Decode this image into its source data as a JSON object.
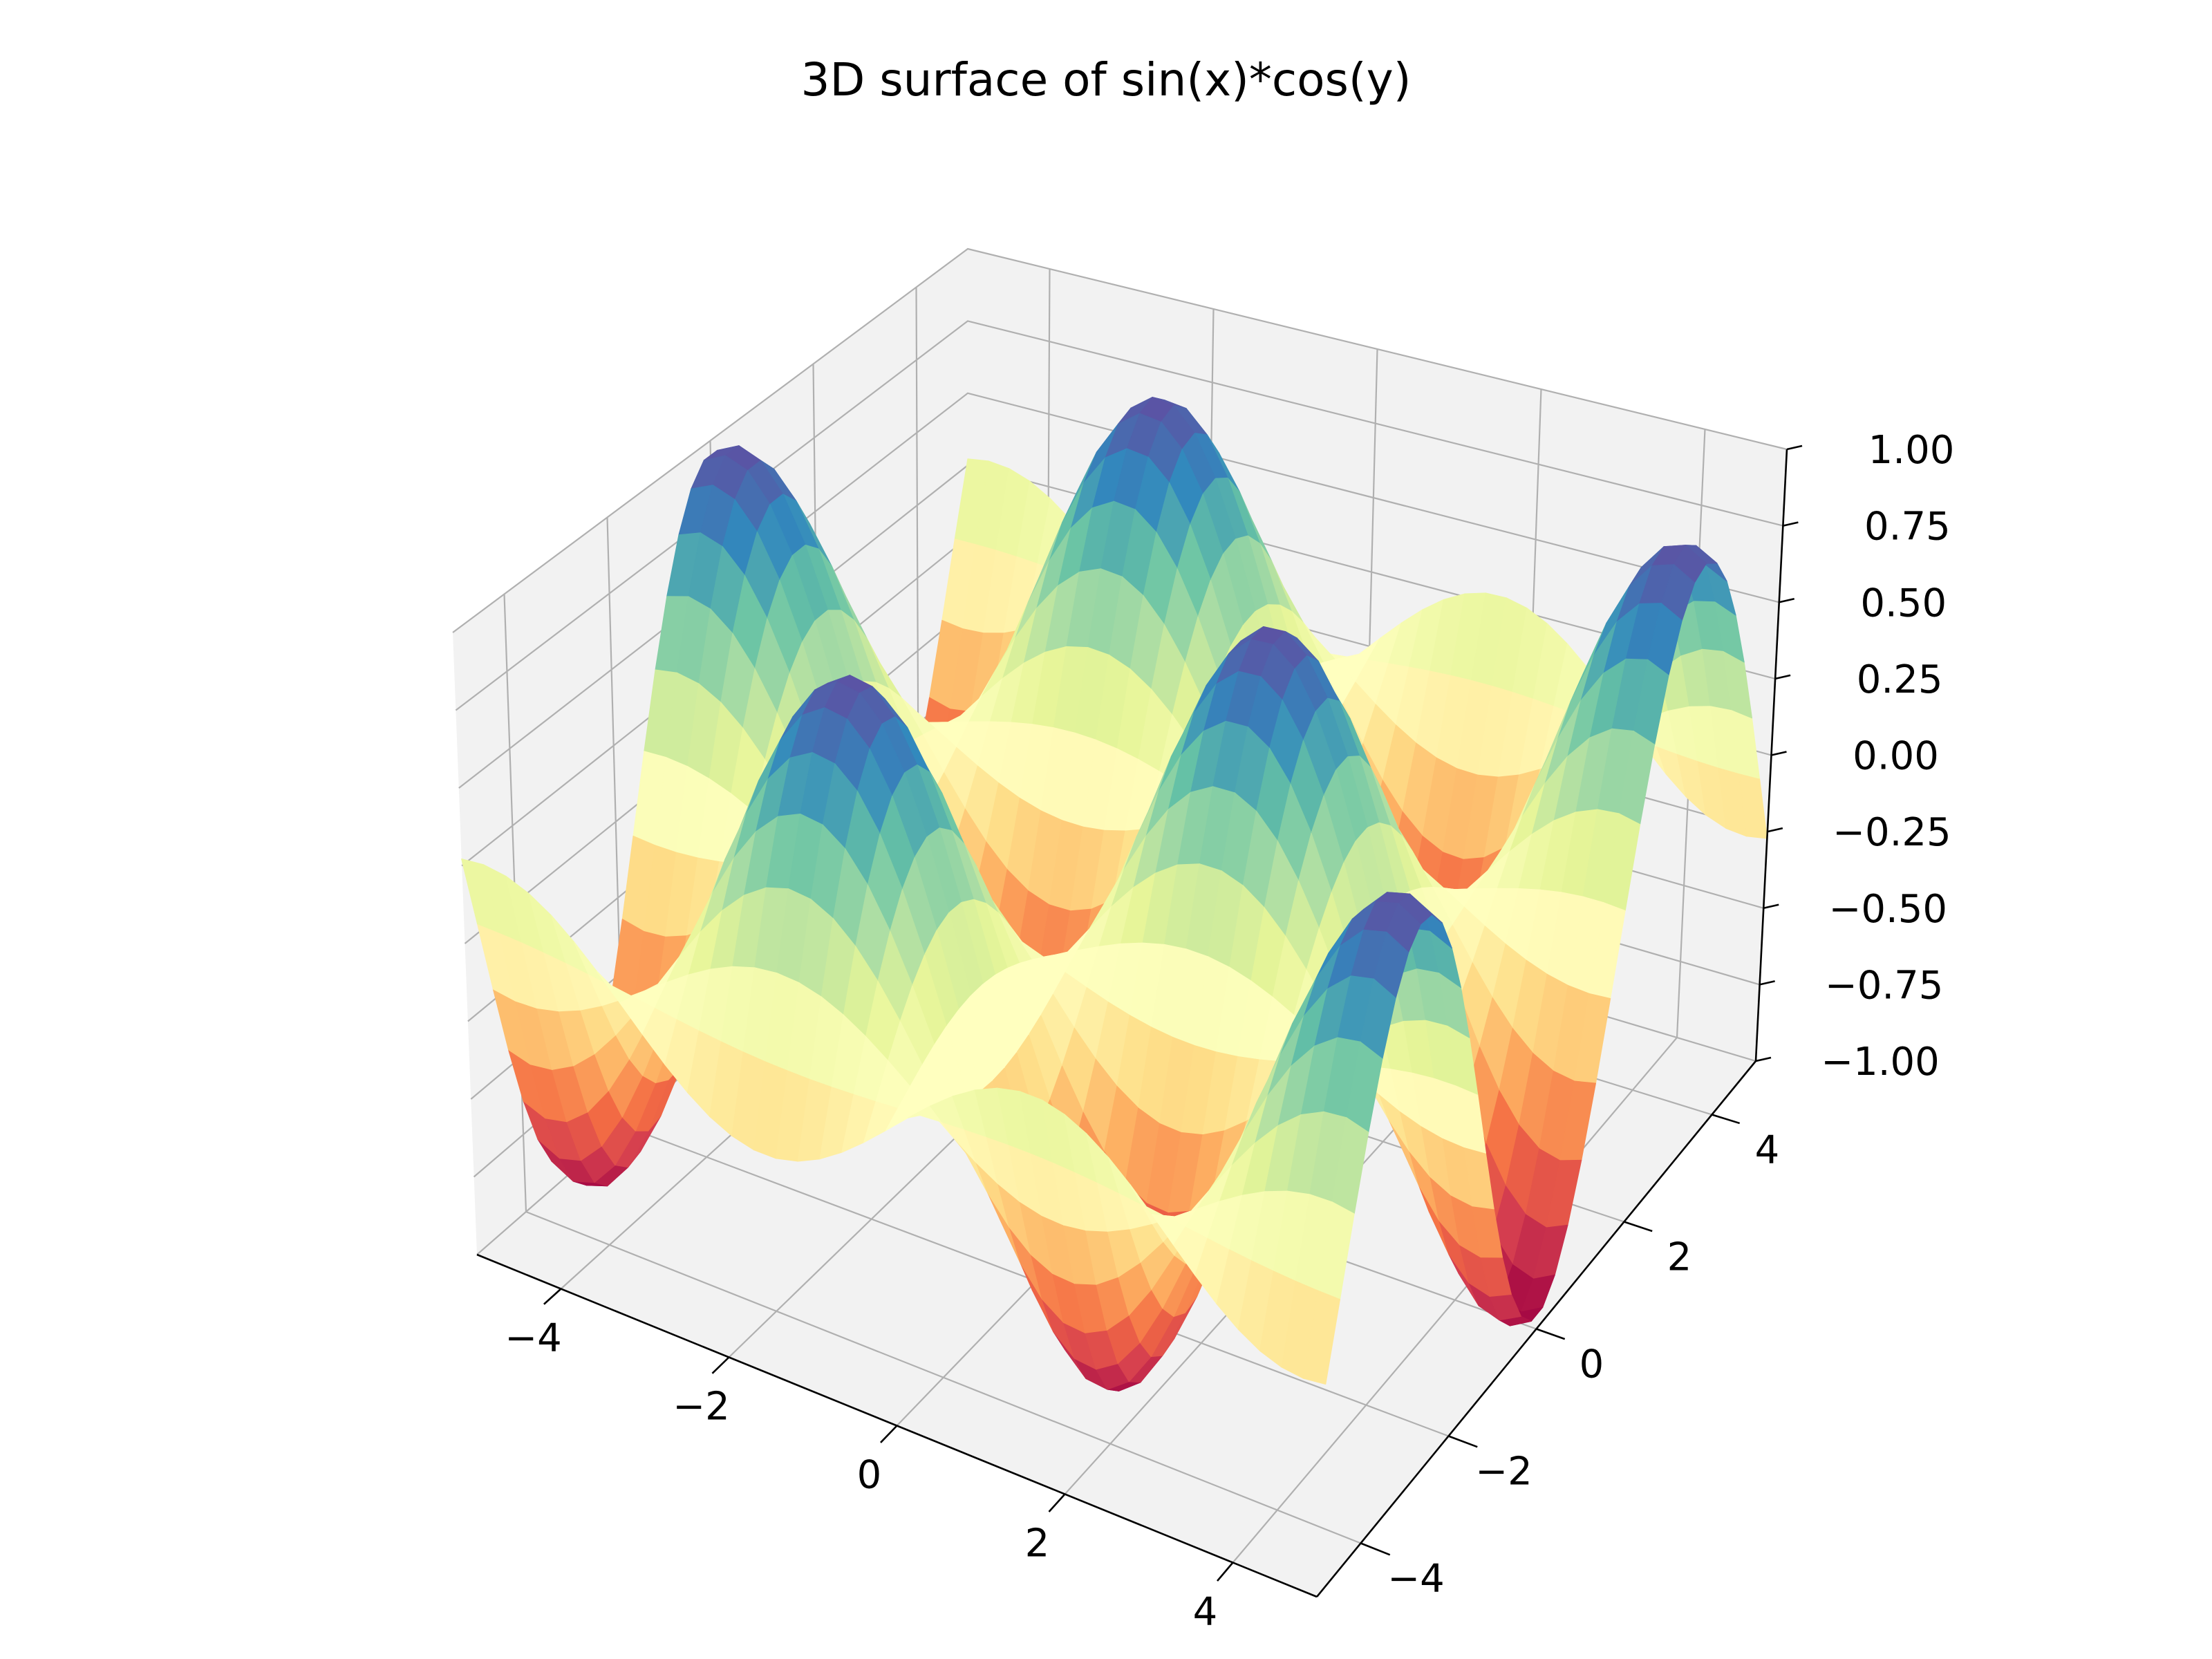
{
  "chart_data": {
    "type": "surface",
    "title": "3D surface of sin(x)*cos(y)",
    "function": "sin(x)*cos(y)",
    "x_range": [
      -5,
      5
    ],
    "y_range": [
      -5,
      5
    ],
    "z_range": [
      -1,
      1
    ],
    "grid_resolution": 40,
    "colormap": "Spectral",
    "xticks": [
      -4,
      -2,
      0,
      2,
      4
    ],
    "yticks": [
      -4,
      -2,
      0,
      2,
      4
    ],
    "zticks": [
      -1,
      -0.75,
      -0.5,
      -0.25,
      0,
      0.25,
      0.5,
      0.75,
      1
    ],
    "xtick_labels": [
      "−4",
      "−2",
      "0",
      "2",
      "4"
    ],
    "ytick_labels": [
      "−4",
      "−2",
      "0",
      "2",
      "4"
    ],
    "ztick_labels": [
      "−1.00",
      "−0.75",
      "−0.50",
      "−0.25",
      "0.00",
      "0.25",
      "0.50",
      "0.75",
      "1.00"
    ],
    "xlabel": "",
    "ylabel": "",
    "zlabel": "",
    "grid": true,
    "view": {
      "elev": 30,
      "azim": -60
    },
    "colors": {
      "pane": "#f2f2f2",
      "grid": "#b0b0b0",
      "axis": "#000000"
    }
  }
}
